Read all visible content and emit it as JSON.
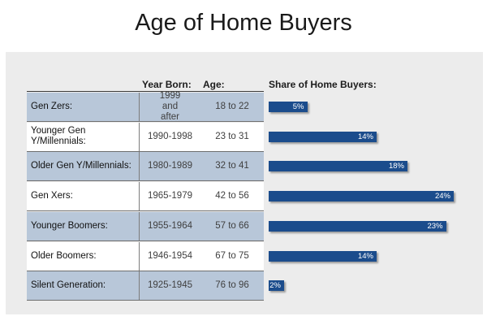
{
  "page": {
    "title": "Age of Home Buyers"
  },
  "headers": {
    "year_born": "Year Born:",
    "age": "Age:",
    "share": "Share of Home Buyers:"
  },
  "chart_data": {
    "type": "bar",
    "orientation": "horizontal",
    "title": "Age of Home Buyers",
    "xlabel": "Share of Home Buyers:",
    "categories": [
      "Gen Zers:",
      "Younger Gen Y/Millennials:",
      "Older Gen Y/Millennials:",
      "Gen Xers:",
      "Younger Boomers:",
      "Older Boomers:",
      "Silent Generation:"
    ],
    "values": [
      5,
      14,
      18,
      24,
      23,
      14,
      2
    ],
    "value_labels": [
      "5%",
      "14%",
      "18%",
      "24%",
      "23%",
      "14%",
      "2%"
    ],
    "xlim": [
      0,
      24
    ],
    "bar_color": "#1b4c8c",
    "grid": false
  },
  "rows": [
    {
      "generation": "Gen Zers:",
      "year_born": "1999 and after",
      "age": "18 to 22",
      "share": 5,
      "label": "5%",
      "shaded": true
    },
    {
      "generation": "Younger Gen Y/Millennials:",
      "year_born": "1990-1998",
      "age": "23 to 31",
      "share": 14,
      "label": "14%",
      "shaded": false
    },
    {
      "generation": "Older Gen Y/Millennials:",
      "year_born": "1980-1989",
      "age": "32 to 41",
      "share": 18,
      "label": "18%",
      "shaded": true
    },
    {
      "generation": "Gen Xers:",
      "year_born": "1965-1979",
      "age": "42 to 56",
      "share": 24,
      "label": "24%",
      "shaded": false
    },
    {
      "generation": "Younger Boomers:",
      "year_born": "1955-1964",
      "age": "57 to 66",
      "share": 23,
      "label": "23%",
      "shaded": true
    },
    {
      "generation": "Older Boomers:",
      "year_born": "1946-1954",
      "age": "67 to 75",
      "share": 14,
      "label": "14%",
      "shaded": false
    },
    {
      "generation": "Silent Generation:",
      "year_born": "1925-1945",
      "age": "76 to 96",
      "share": 2,
      "label": "2%",
      "shaded": true
    }
  ],
  "colors": {
    "bar": "#1b4c8c",
    "row_shade": "#b8c7d9",
    "panel": "#ececec"
  }
}
